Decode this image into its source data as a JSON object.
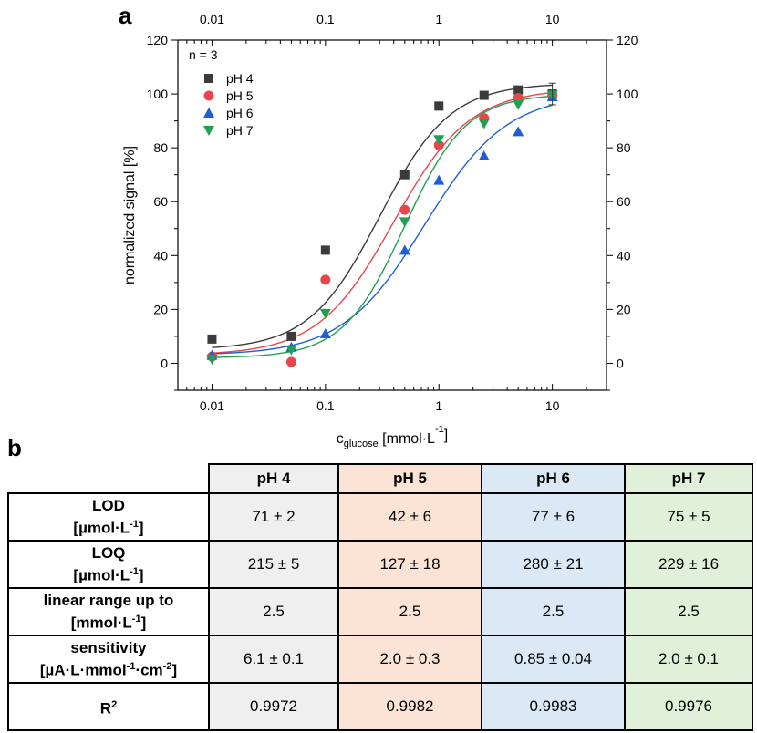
{
  "panel_labels": {
    "a": "a",
    "b": "b"
  },
  "chart_data": {
    "type": "scatter",
    "title": "",
    "xlabel": {
      "pre": "c",
      "sub": "glucose",
      "post": " [mmol·L",
      "sup": "-1",
      "end": "]"
    },
    "ylabel": "normalized signal [%]",
    "x_scale": "log",
    "xlim": [
      0.005,
      30
    ],
    "ylim": [
      -10,
      120
    ],
    "x_ticks": [
      0.01,
      0.1,
      1,
      10
    ],
    "x_tick_labels": [
      "0.01",
      "0.1",
      "1",
      "10"
    ],
    "y_ticks": [
      0,
      20,
      40,
      60,
      80,
      100,
      120
    ],
    "y_tick_labels": [
      "0",
      "20",
      "40",
      "60",
      "80",
      "100",
      "120"
    ],
    "annotation": "n = 3",
    "grid": false,
    "legend_position": "top-left",
    "x": [
      0.01,
      0.05,
      0.1,
      0.5,
      1,
      2.5,
      5,
      10
    ],
    "series": [
      {
        "name": "pH 4",
        "color": "#3b3b3b",
        "marker": "square",
        "values": [
          9,
          10,
          42,
          70,
          95.5,
          99.5,
          101.5,
          100
        ],
        "fit": {
          "bottom": 5,
          "top": 104,
          "ec50": 0.3,
          "hill": 1.4
        }
      },
      {
        "name": "pH 5",
        "color": "#e8464d",
        "marker": "circle",
        "values": [
          2.5,
          0.5,
          31,
          57,
          81,
          91,
          98.5,
          99.5
        ],
        "fit": {
          "bottom": 3,
          "top": 102,
          "ec50": 0.4,
          "hill": 1.3
        }
      },
      {
        "name": "pH 6",
        "color": "#1f5fd6",
        "marker": "triangle-up",
        "values": [
          3,
          6,
          11,
          42,
          68,
          77,
          86,
          99
        ],
        "fit": {
          "bottom": 3,
          "top": 100,
          "ec50": 0.75,
          "hill": 1.2
        }
      },
      {
        "name": "pH 7",
        "color": "#22a052",
        "marker": "triangle-down",
        "values": [
          1.5,
          5,
          18.5,
          52.5,
          83,
          89,
          96,
          99.5
        ],
        "fit": {
          "bottom": 2,
          "top": 100,
          "ec50": 0.5,
          "hill": 1.6
        }
      }
    ]
  },
  "table": {
    "columns": [
      "pH 4",
      "pH 5",
      "pH 6",
      "pH 7"
    ],
    "rows": [
      {
        "label_html": "LOD<br>[µmol·L<sup>-1</sup>]",
        "values": [
          "71 ± 2",
          "42 ± 6",
          "77 ± 6",
          "75 ± 5"
        ]
      },
      {
        "label_html": "LOQ<br>[µmol·L<sup>-1</sup>]",
        "values": [
          "215 ± 5",
          "127 ± 18",
          "280 ± 21",
          "229 ± 16"
        ]
      },
      {
        "label_html": "linear range up to<br>[mmol·L<sup>-1</sup>]",
        "values": [
          "2.5",
          "2.5",
          "2.5",
          "2.5"
        ]
      },
      {
        "label_html": "sensitivity<br>[µA·L·mmol<sup>-1</sup>·cm<sup>-2</sup>]",
        "values": [
          "6.1 ± 0.1",
          "2.0 ± 0.3",
          "0.85 ± 0.04",
          "2.0 ± 0.1"
        ]
      },
      {
        "label_html": "R<sup>2</sup>",
        "values": [
          "0.9972",
          "0.9982",
          "0.9983",
          "0.9976"
        ]
      }
    ]
  }
}
